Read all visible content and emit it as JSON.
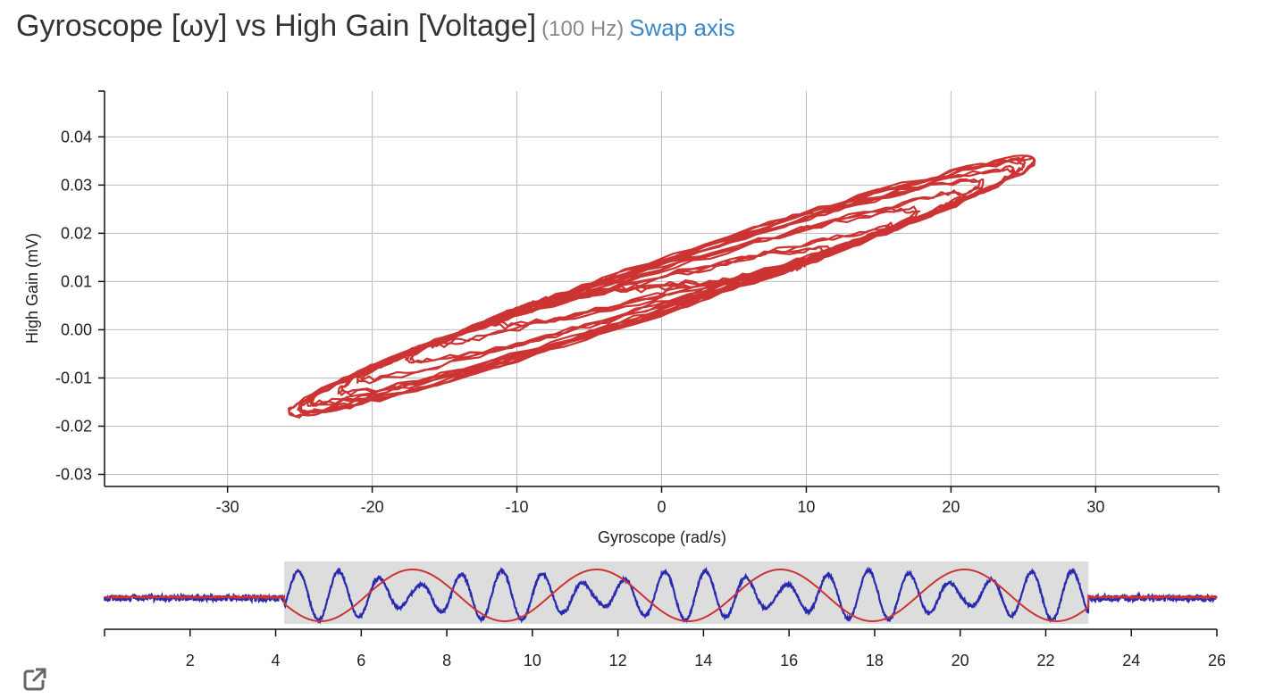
{
  "header": {
    "title": "Gyroscope [ωy] vs High Gain [Voltage]",
    "rate": "(100 Hz)",
    "swap_label": "Swap axis"
  },
  "colors": {
    "series": "#cc3333",
    "secondary_series": "#2a2ab0",
    "y_label": "#1a1ab4",
    "x_label": "#cc2222",
    "grid": "#bbbbbb",
    "selection": "#dddddd",
    "link": "#3a87c8"
  },
  "chart_data": [
    {
      "type": "scatter",
      "mode": "lines",
      "xlabel": "Gyroscope (rad/s)",
      "ylabel": "High Gain (mV)",
      "xlim": [
        -38.5,
        38.5
      ],
      "ylim": [
        -0.0325,
        0.0495
      ],
      "x_ticks": [
        -30,
        -20,
        -10,
        0,
        10,
        20,
        30
      ],
      "y_ticks": [
        0.04,
        0.03,
        0.02,
        0.01,
        0.0,
        -0.01,
        -0.02,
        -0.03
      ],
      "x_tick_labels": [
        "-30",
        "-20",
        "-10",
        "0",
        "10",
        "20",
        "30"
      ],
      "y_tick_labels": [
        "0.04",
        "0.03",
        "0.02",
        "0.01",
        "0.00",
        "-0.01",
        "-0.02",
        "-0.03"
      ],
      "grid": true,
      "trace": {
        "t_start": 4.2,
        "t_end": 23.0,
        "samples_per_second": 100,
        "x_amplitude_min": 7.5,
        "x_amplitude_max": 25.8,
        "x_frequency_hz": 1.05,
        "y_center": 0.009,
        "y_swing": 0.024,
        "phase_lag_rad": 0.25,
        "description_series": "Gyroscope ωy vs High Gain"
      }
    },
    {
      "type": "line",
      "role": "time-overview",
      "xlim": [
        0,
        26
      ],
      "x_ticks": [
        2,
        4,
        6,
        8,
        10,
        12,
        14,
        16,
        18,
        20,
        22,
        24,
        26
      ],
      "x_tick_labels": [
        "2",
        "4",
        "6",
        "8",
        "10",
        "12",
        "14",
        "16",
        "18",
        "20",
        "22",
        "24",
        "26"
      ],
      "selection_range": [
        4.2,
        23.0
      ],
      "series": [
        {
          "role": "envelope",
          "color": "#cc3333",
          "period_s": 4.3,
          "phase_t0": 5.05
        },
        {
          "role": "oscillation",
          "color": "#2a2ab0",
          "frequency_hz": 1.05
        }
      ]
    }
  ]
}
